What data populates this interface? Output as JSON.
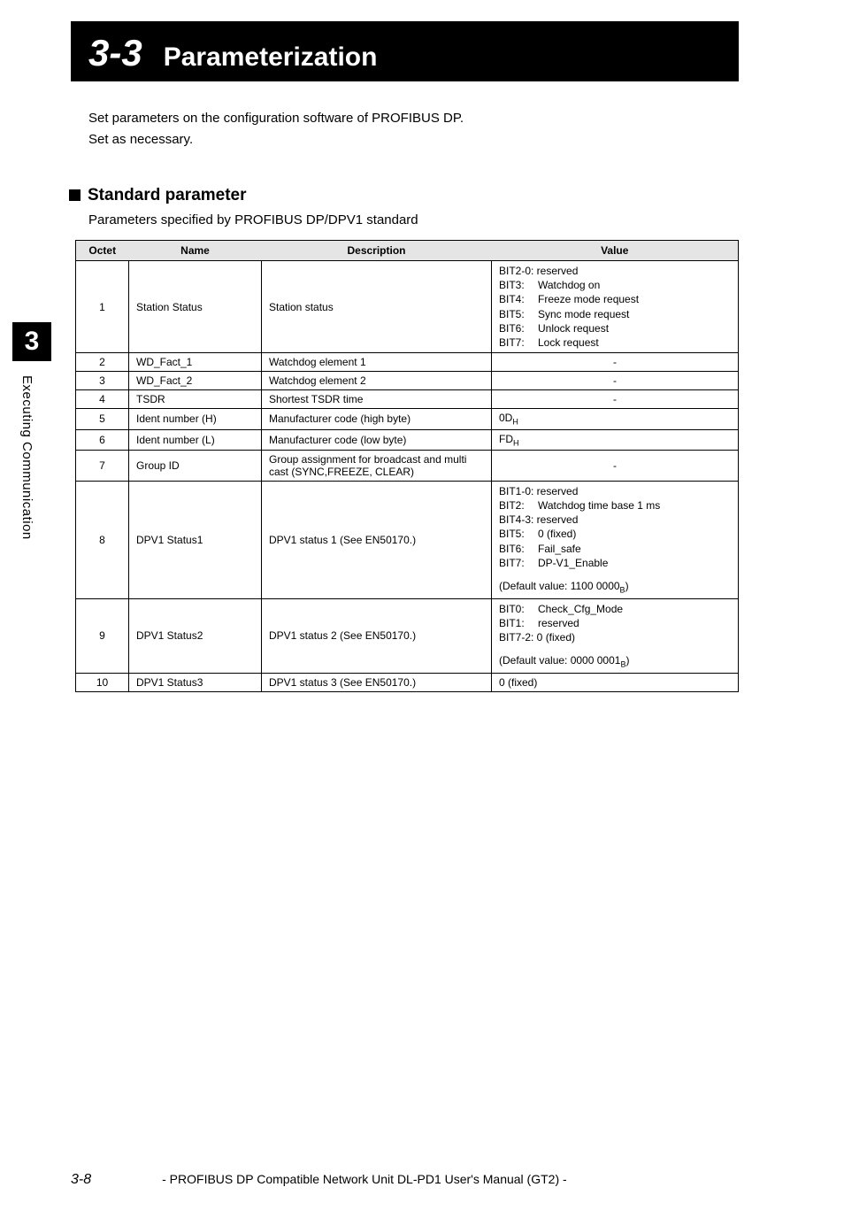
{
  "header": {
    "section_number": "3-3",
    "section_title": "Parameterization"
  },
  "intro": {
    "line1": "Set parameters on the configuration software of PROFIBUS DP.",
    "line2": "Set as necessary."
  },
  "subsection": {
    "heading": "Standard parameter",
    "desc": "Parameters specified by PROFIBUS DP/DPV1 standard"
  },
  "table": {
    "headers": {
      "c1": "Octet",
      "c2": "Name",
      "c3": "Description",
      "c4": "Value"
    },
    "rows": [
      {
        "octet": "1",
        "name": "Station Status",
        "desc": "Station status",
        "value_bits": [
          {
            "label": "BIT2-0:",
            "text": "reserved",
            "wide": true
          },
          {
            "label": "BIT3:",
            "text": "Watchdog on"
          },
          {
            "label": "BIT4:",
            "text": "Freeze mode request"
          },
          {
            "label": "BIT5:",
            "text": "Sync mode request"
          },
          {
            "label": "BIT6:",
            "text": "Unlock request"
          },
          {
            "label": "BIT7:",
            "text": "Lock request"
          }
        ]
      },
      {
        "octet": "2",
        "name": "WD_Fact_1",
        "desc": "Watchdog element 1",
        "value_center": "-"
      },
      {
        "octet": "3",
        "name": "WD_Fact_2",
        "desc": "Watchdog element 2",
        "value_center": "-"
      },
      {
        "octet": "4",
        "name": "TSDR",
        "desc": "Shortest TSDR time",
        "value_center": "-"
      },
      {
        "octet": "5",
        "name": "Ident number (H)",
        "desc": "Manufacturer code (high byte)",
        "value_sub": {
          "main": "0D",
          "sub": "H"
        }
      },
      {
        "octet": "6",
        "name": "Ident number (L)",
        "desc": "Manufacturer code (low byte)",
        "value_sub": {
          "main": "FD",
          "sub": "H"
        }
      },
      {
        "octet": "7",
        "name": "Group ID",
        "desc": "Group assignment for broadcast and multi cast (SYNC,FREEZE, CLEAR)",
        "value_center": "-"
      },
      {
        "octet": "8",
        "name": "DPV1 Status1",
        "desc": "DPV1 status 1 (See EN50170.)",
        "value_bits": [
          {
            "label": "BIT1-0:",
            "text": "reserved",
            "wide": true
          },
          {
            "label": "BIT2:",
            "text": "Watchdog time base 1 ms"
          },
          {
            "label": "BIT4-3:",
            "text": "reserved",
            "wide": true
          },
          {
            "label": "BIT5:",
            "text": "0 (fixed)"
          },
          {
            "label": "BIT6:",
            "text": "Fail_safe"
          },
          {
            "label": "BIT7:",
            "text": "DP-V1_Enable"
          }
        ],
        "default": {
          "pre": "(Default value: 1100 0000",
          "sub": "B",
          "post": ")"
        }
      },
      {
        "octet": "9",
        "name": "DPV1 Status2",
        "desc": "DPV1 status 2 (See EN50170.)",
        "value_bits": [
          {
            "label": "BIT0:",
            "text": "Check_Cfg_Mode"
          },
          {
            "label": "BIT1:",
            "text": "reserved"
          },
          {
            "label": "BIT7-2:",
            "text": "0 (fixed)",
            "wide": true
          }
        ],
        "default": {
          "pre": "(Default value: 0000 0001",
          "sub": "B",
          "post": ")"
        }
      },
      {
        "octet": "10",
        "name": "DPV1 Status3",
        "desc": "DPV1 status 3 (See EN50170.)",
        "value_plain": "0 (fixed)"
      }
    ]
  },
  "chapter": {
    "number": "3",
    "vertical": "Executing Communication"
  },
  "footer": {
    "page": "3-8",
    "title": "- PROFIBUS DP Compatible Network Unit DL-PD1 User's Manual (GT2) -"
  },
  "colors": {
    "header_bg": "#000000",
    "header_fg": "#ffffff",
    "th_bg": "#e5e5e5",
    "border": "#000000"
  }
}
